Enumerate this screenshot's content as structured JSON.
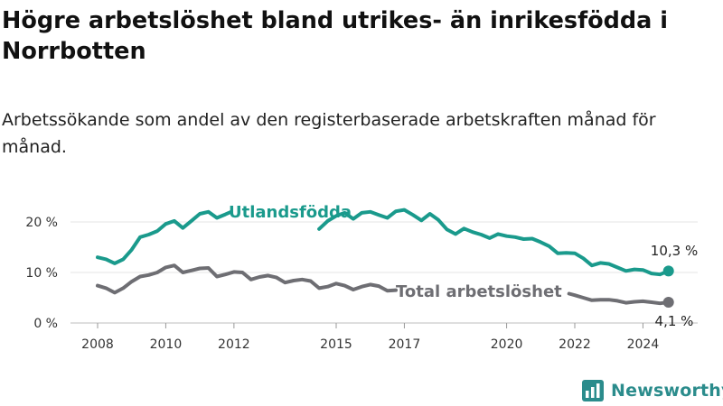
{
  "title": "Högre arbetslöshet bland utrikes- än inrikesfödda i Norrbotten",
  "subtitle": "Arbetssökande som andel av den registerbaserade arbetskraften månad för månad.",
  "brand": "Newsworthy",
  "colors": {
    "foreign_born": "#1a9a8c",
    "total": "#6e6e73",
    "grid": "#e4e4e4",
    "brand": "#2b8c8c"
  },
  "chart_data": {
    "type": "line",
    "x_ticks": [
      "2008",
      "2010",
      "2012",
      "2015",
      "2017",
      "2020",
      "2022",
      "2024"
    ],
    "y_ticks": [
      "0 %",
      "10 %",
      "20 %"
    ],
    "ylim": [
      0,
      21
    ],
    "xlim": [
      "2008-01",
      "2024-12"
    ],
    "grid": true,
    "series": [
      {
        "name": "Utlandsfödda",
        "color": "#1a9a8c",
        "end_label": "10,3 %",
        "points": [
          [
            "2008-01",
            13.0
          ],
          [
            "2008-04",
            12.6
          ],
          [
            "2008-07",
            11.8
          ],
          [
            "2008-10",
            12.6
          ],
          [
            "2009-01",
            14.5
          ],
          [
            "2009-04",
            17.0
          ],
          [
            "2009-07",
            17.5
          ],
          [
            "2009-10",
            18.2
          ],
          [
            "2010-01",
            19.6
          ],
          [
            "2010-04",
            20.2
          ],
          [
            "2010-07",
            18.8
          ],
          [
            "2010-10",
            20.2
          ],
          [
            "2011-01",
            21.6
          ],
          [
            "2011-04",
            22.0
          ],
          [
            "2011-07",
            20.8
          ],
          [
            "2011-10",
            21.5
          ],
          [
            "2011-12",
            22.0
          ],
          [
            null,
            null
          ],
          [
            "2014-07",
            18.6
          ],
          [
            "2014-10",
            20.2
          ],
          [
            "2015-01",
            21.2
          ],
          [
            "2015-04",
            21.8
          ],
          [
            "2015-07",
            20.6
          ],
          [
            "2015-10",
            21.8
          ],
          [
            "2016-01",
            22.0
          ],
          [
            "2016-04",
            21.4
          ],
          [
            "2016-07",
            20.8
          ],
          [
            "2016-10",
            22.1
          ],
          [
            "2017-01",
            22.4
          ],
          [
            "2017-04",
            21.4
          ],
          [
            "2017-07",
            20.3
          ],
          [
            "2017-10",
            21.6
          ],
          [
            "2018-01",
            20.4
          ],
          [
            "2018-04",
            18.5
          ],
          [
            "2018-07",
            17.6
          ],
          [
            "2018-10",
            18.7
          ],
          [
            "2019-01",
            18.0
          ],
          [
            "2019-04",
            17.5
          ],
          [
            "2019-07",
            16.8
          ],
          [
            "2019-10",
            17.6
          ],
          [
            "2020-01",
            17.2
          ],
          [
            "2020-04",
            17.0
          ],
          [
            "2020-07",
            16.6
          ],
          [
            "2020-10",
            16.7
          ],
          [
            "2021-01",
            16.0
          ],
          [
            "2021-04",
            15.2
          ],
          [
            "2021-07",
            13.8
          ],
          [
            "2021-10",
            13.9
          ],
          [
            "2022-01",
            13.8
          ],
          [
            "2022-04",
            12.8
          ],
          [
            "2022-07",
            11.4
          ],
          [
            "2022-10",
            11.9
          ],
          [
            "2023-01",
            11.7
          ],
          [
            "2023-04",
            11.0
          ],
          [
            "2023-07",
            10.3
          ],
          [
            "2023-10",
            10.6
          ],
          [
            "2024-01",
            10.5
          ],
          [
            "2024-04",
            9.8
          ],
          [
            "2024-07",
            9.6
          ],
          [
            "2024-10",
            10.3
          ]
        ]
      },
      {
        "name": "Total arbetslöshet",
        "color": "#6e6e73",
        "end_label": "4,1 %",
        "points": [
          [
            "2008-01",
            7.4
          ],
          [
            "2008-04",
            6.9
          ],
          [
            "2008-07",
            6.0
          ],
          [
            "2008-10",
            6.9
          ],
          [
            "2009-01",
            8.2
          ],
          [
            "2009-04",
            9.2
          ],
          [
            "2009-07",
            9.5
          ],
          [
            "2009-10",
            10.0
          ],
          [
            "2010-01",
            11.0
          ],
          [
            "2010-04",
            11.4
          ],
          [
            "2010-07",
            10.0
          ],
          [
            "2010-10",
            10.4
          ],
          [
            "2011-01",
            10.8
          ],
          [
            "2011-04",
            10.9
          ],
          [
            "2011-07",
            9.2
          ],
          [
            "2011-10",
            9.6
          ],
          [
            "2012-01",
            10.1
          ],
          [
            "2012-04",
            10.0
          ],
          [
            "2012-07",
            8.6
          ],
          [
            "2012-10",
            9.1
          ],
          [
            "2013-01",
            9.4
          ],
          [
            "2013-04",
            9.0
          ],
          [
            "2013-07",
            8.0
          ],
          [
            "2013-10",
            8.4
          ],
          [
            "2014-01",
            8.6
          ],
          [
            "2014-04",
            8.3
          ],
          [
            "2014-07",
            6.9
          ],
          [
            "2014-10",
            7.2
          ],
          [
            "2015-01",
            7.8
          ],
          [
            "2015-04",
            7.4
          ],
          [
            "2015-07",
            6.6
          ],
          [
            "2015-10",
            7.2
          ],
          [
            "2016-01",
            7.6
          ],
          [
            "2016-04",
            7.3
          ],
          [
            "2016-07",
            6.4
          ],
          [
            "2016-10",
            6.5
          ],
          [
            null,
            null
          ],
          [
            "2021-11",
            5.8
          ],
          [
            "2022-01",
            5.5
          ],
          [
            "2022-04",
            5.0
          ],
          [
            "2022-07",
            4.5
          ],
          [
            "2022-10",
            4.6
          ],
          [
            "2023-01",
            4.6
          ],
          [
            "2023-04",
            4.4
          ],
          [
            "2023-07",
            4.0
          ],
          [
            "2023-10",
            4.2
          ],
          [
            "2024-01",
            4.3
          ],
          [
            "2024-04",
            4.1
          ],
          [
            "2024-07",
            3.9
          ],
          [
            "2024-10",
            4.1
          ]
        ]
      }
    ]
  }
}
